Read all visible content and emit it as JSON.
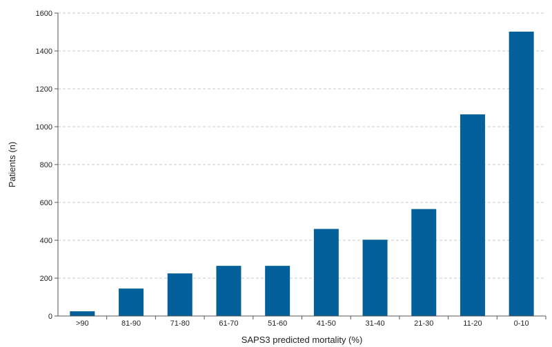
{
  "chart_data": {
    "type": "bar",
    "title": "",
    "xlabel": "SAPS3 predicted mortality (%)",
    "ylabel": "Patients (n)",
    "categories": [
      ">90",
      "81-90",
      "71-80",
      "61-70",
      "51-60",
      "41-50",
      "31-40",
      "21-30",
      "11-20",
      "0-10"
    ],
    "values": [
      25,
      145,
      225,
      265,
      265,
      460,
      403,
      565,
      1065,
      1502
    ],
    "ylim": [
      0,
      1600
    ],
    "yticks": [
      0,
      200,
      400,
      600,
      800,
      1000,
      1200,
      1400,
      1600
    ],
    "grid": "horizontal dashed",
    "legend": "none",
    "bar_color": "#04609a",
    "grid_color": "#c8c8c8",
    "axis_color": "#555555"
  }
}
